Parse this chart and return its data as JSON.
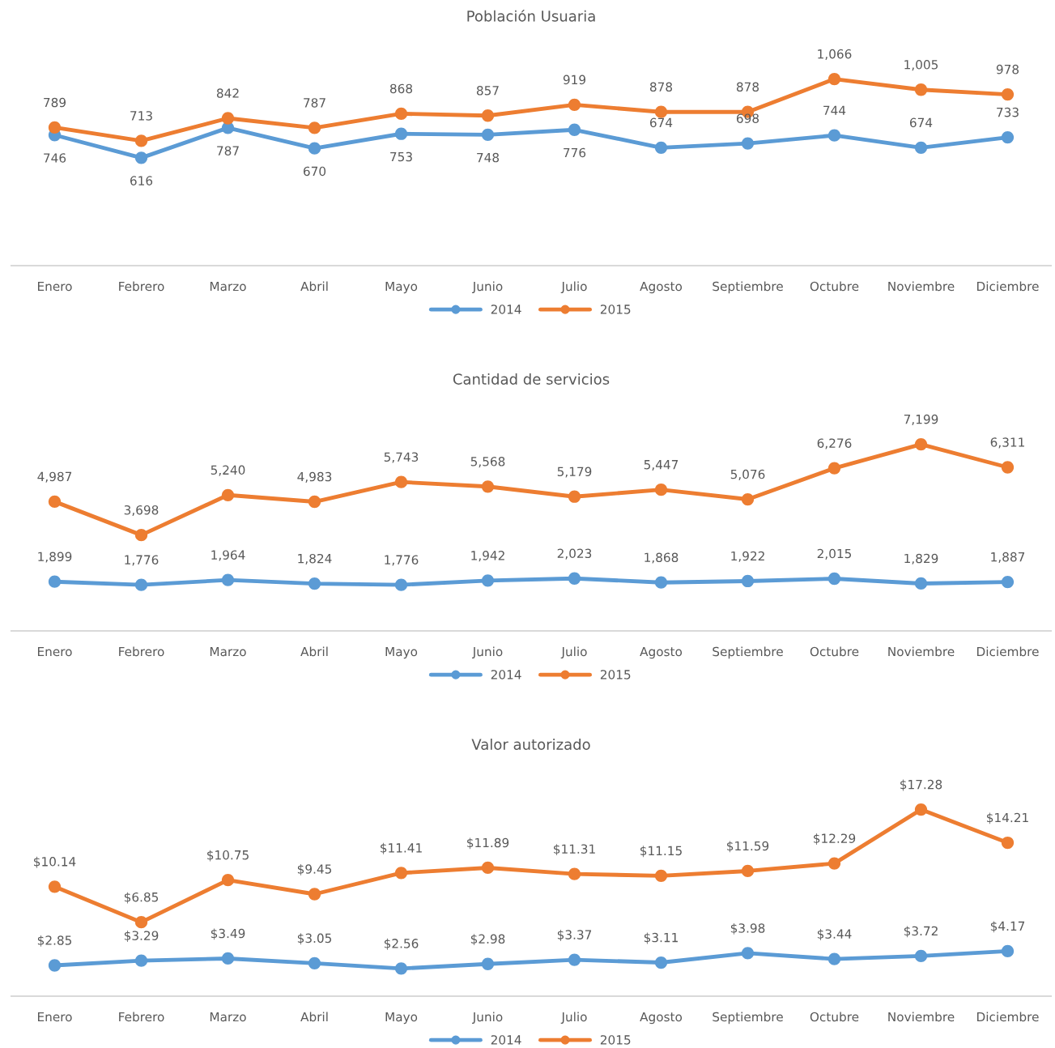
{
  "chart_data": [
    {
      "type": "line",
      "title": "Población Usuaria",
      "categories": [
        "Enero",
        "Febrero",
        "Marzo",
        "Abril",
        "Mayo",
        "Junio",
        "Julio",
        "Agosto",
        "Septiembre",
        "Octubre",
        "Noviembre",
        "Diciembre"
      ],
      "tick_labels": "x",
      "grid": false,
      "legend": "bottom",
      "marker": "circle",
      "line_style": "solid",
      "series": [
        {
          "name": "2014",
          "color": "#5b9bd5",
          "values": [
            746,
            616,
            787,
            670,
            753,
            748,
            776,
            674,
            698,
            744,
            674,
            733
          ],
          "value_labels": [
            "746",
            "616",
            "787",
            "670",
            "753",
            "748",
            "776",
            "674",
            "698",
            "744",
            "674",
            "733"
          ]
        },
        {
          "name": "2015",
          "color": "#ed7d31",
          "values": [
            789,
            713,
            842,
            787,
            868,
            857,
            919,
            878,
            878,
            1066,
            1005,
            978
          ],
          "value_labels": [
            "789",
            "713",
            "842",
            "787",
            "868",
            "857",
            "919",
            "878",
            "878",
            "1,066",
            "1,005",
            "978"
          ]
        }
      ]
    },
    {
      "type": "line",
      "title": "Cantidad de servicios",
      "categories": [
        "Enero",
        "Febrero",
        "Marzo",
        "Abril",
        "Mayo",
        "Junio",
        "Julio",
        "Agosto",
        "Septiembre",
        "Octubre",
        "Noviembre",
        "Diciembre"
      ],
      "tick_labels": "x",
      "grid": false,
      "legend": "bottom",
      "marker": "circle",
      "line_style": "solid",
      "series": [
        {
          "name": "2014",
          "color": "#5b9bd5",
          "values": [
            1899,
            1776,
            1964,
            1824,
            1776,
            1942,
            2023,
            1868,
            1922,
            2015,
            1829,
            1887
          ],
          "value_labels": [
            "1,899",
            "1,776",
            "1,964",
            "1,824",
            "1,776",
            "1,942",
            "2,023",
            "1,868",
            "1,922",
            "2,015",
            "1,829",
            "1,887"
          ]
        },
        {
          "name": "2015",
          "color": "#ed7d31",
          "values": [
            4987,
            3698,
            5240,
            4983,
            5743,
            5568,
            5179,
            5447,
            5076,
            6276,
            7199,
            6311
          ],
          "value_labels": [
            "4,987",
            "3,698",
            "5,240",
            "4,983",
            "5,743",
            "5,568",
            "5,179",
            "5,447",
            "5,076",
            "6,276",
            "7,199",
            "6,311"
          ]
        }
      ]
    },
    {
      "type": "line",
      "title": "Valor autorizado",
      "categories": [
        "Enero",
        "Febrero",
        "Marzo",
        "Abril",
        "Mayo",
        "Junio",
        "Julio",
        "Agosto",
        "Septiembre",
        "Octubre",
        "Noviembre",
        "Diciembre"
      ],
      "tick_labels": "x",
      "grid": false,
      "legend": "bottom",
      "marker": "circle",
      "line_style": "solid",
      "series": [
        {
          "name": "2014",
          "color": "#5b9bd5",
          "values": [
            2.85,
            3.29,
            3.49,
            3.05,
            2.56,
            2.98,
            3.37,
            3.11,
            3.98,
            3.44,
            3.72,
            4.17
          ],
          "value_labels": [
            "$2.85",
            "$3.29",
            "$3.49",
            "$3.05",
            "$2.56",
            "$2.98",
            "$3.37",
            "$3.11",
            "$3.98",
            "$3.44",
            "$3.72",
            "$4.17"
          ]
        },
        {
          "name": "2015",
          "color": "#ed7d31",
          "values": [
            10.14,
            6.85,
            10.75,
            9.45,
            11.41,
            11.89,
            11.31,
            11.15,
            11.59,
            12.29,
            17.28,
            14.21
          ],
          "value_labels": [
            "$10.14",
            "$6.85",
            "$10.75",
            "$9.45",
            "$11.41",
            "$11.89",
            "$11.31",
            "$11.15",
            "$11.59",
            "$12.29",
            "$17.28",
            "$14.21"
          ]
        }
      ]
    }
  ]
}
